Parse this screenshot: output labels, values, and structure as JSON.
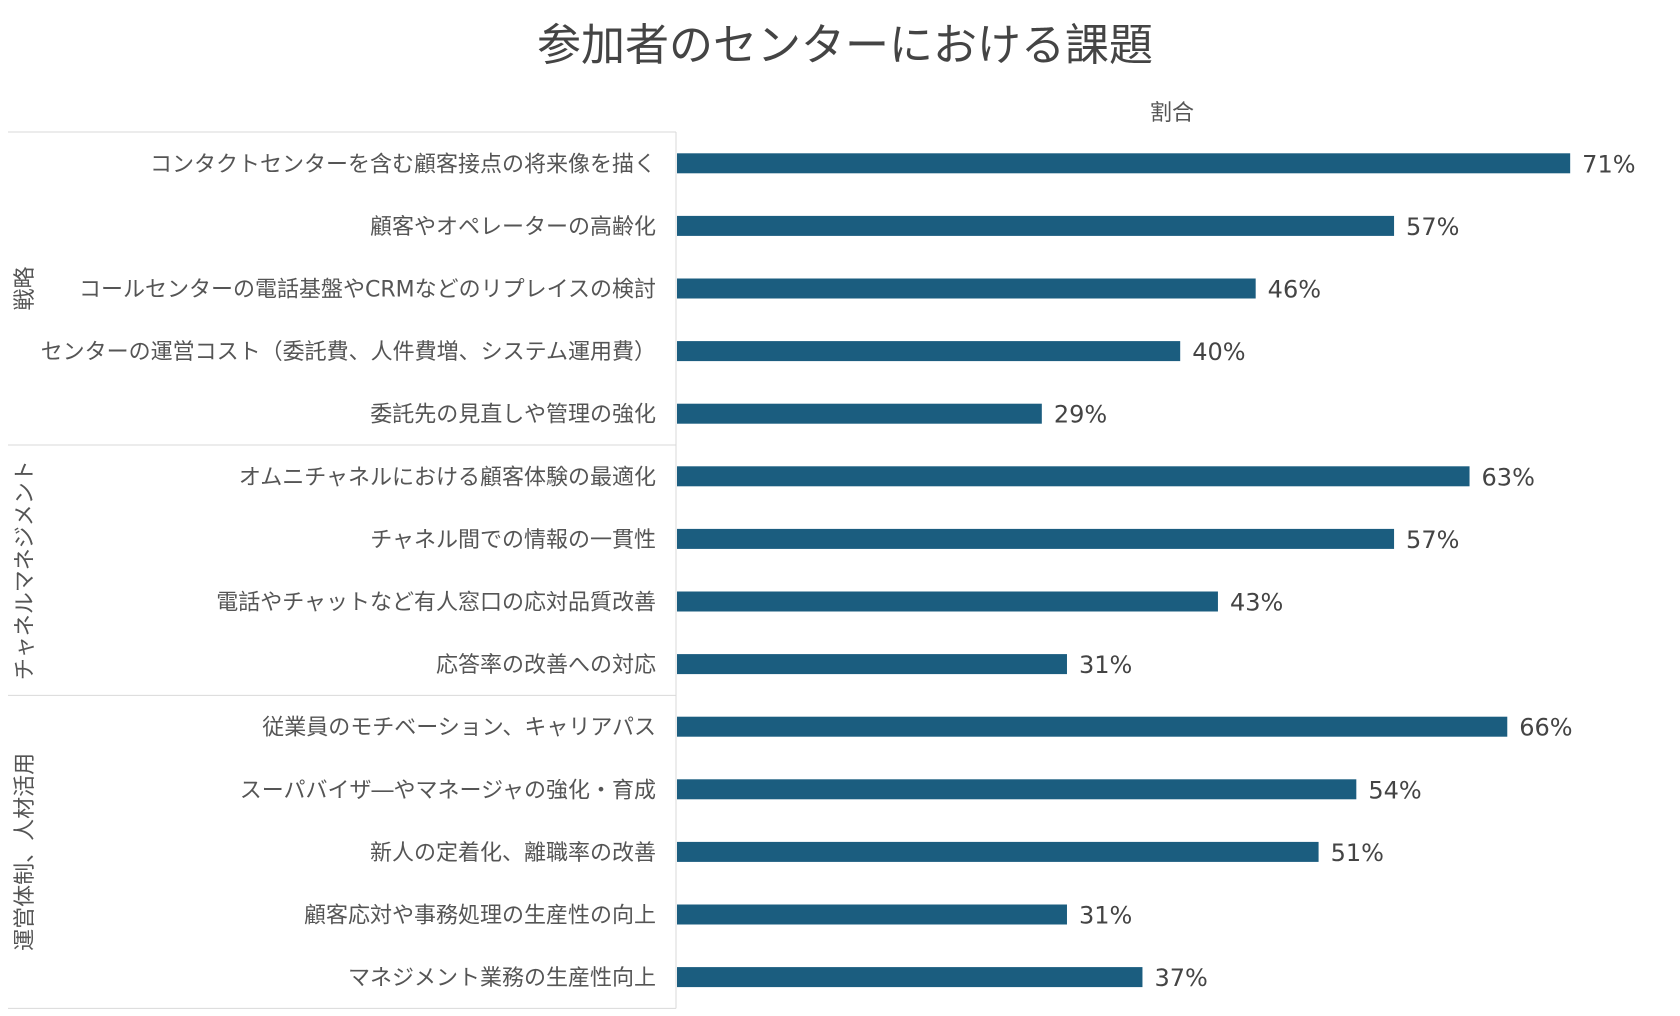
{
  "chart_data": {
    "type": "bar",
    "orientation": "horizontal",
    "title": "参加者のセンターにおける課題",
    "xlabel": "割合",
    "ylabel": "",
    "xlim": [
      0,
      100
    ],
    "unit": "%",
    "bar_color": "#1b5d7f",
    "groups": [
      {
        "name": "戦略",
        "categories": [
          "コンタクトセンターを含む顧客接点の将来像を描く",
          "顧客やオペレーターの高齢化",
          "コールセンターの電話基盤やCRMなどのリプレイスの検討",
          "センターの運営コスト（委託費、人件費増、システム運用費）",
          "委託先の見直しや管理の強化"
        ],
        "values": [
          71,
          57,
          46,
          40,
          29
        ]
      },
      {
        "name": "チャネルマネジメント",
        "categories": [
          "オムニチャネルにおける顧客体験の最適化",
          "チャネル間での情報の一貫性",
          "電話やチャットなど有人窓口の応対品質改善",
          "応答率の改善への対応"
        ],
        "values": [
          63,
          57,
          43,
          31
        ]
      },
      {
        "name": "運営体制、人材活用",
        "categories": [
          "従業員のモチベーション、キャリアパス",
          "スーパバイザ―やマネージャの強化・育成",
          "新人の定着化、離職率の改善",
          "顧客応対や事務処理の生産性の向上",
          "マネジメント業務の生産性向上"
        ],
        "values": [
          66,
          54,
          51,
          31,
          37
        ]
      }
    ]
  }
}
